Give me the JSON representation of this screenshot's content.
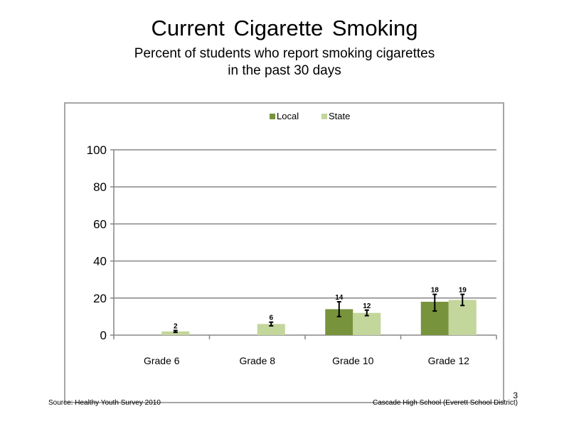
{
  "slide": {
    "title": "Current Cigarette Smoking",
    "subtitle_line1": "Percent of students who report smoking cigarettes",
    "subtitle_line2": "in the past 30 days",
    "source": "Source: Healthy Youth Survey 2010",
    "school": "Cascade High School (Everett School District)",
    "page_number": "3"
  },
  "chart_data": {
    "type": "bar",
    "categories": [
      "Grade 6",
      "Grade 8",
      "Grade 10",
      "Grade 12"
    ],
    "series": [
      {
        "name": "Local",
        "color": "#77933c",
        "values": [
          null,
          null,
          14,
          18
        ],
        "labels": [
          "",
          "",
          "14",
          "18"
        ],
        "error_low": [
          null,
          null,
          10,
          13
        ],
        "error_high": [
          null,
          null,
          18,
          22
        ]
      },
      {
        "name": "State",
        "color": "#c3d69b",
        "values": [
          2,
          6,
          12,
          19
        ],
        "labels": [
          "2",
          "6",
          "12",
          "19"
        ],
        "error_low": [
          1.5,
          5,
          10.5,
          16
        ],
        "error_high": [
          2.5,
          7,
          13.5,
          22
        ]
      }
    ],
    "ylim": [
      0,
      100
    ],
    "yticks": [
      0,
      20,
      40,
      60,
      80,
      100
    ],
    "grid": true,
    "legend": "top-center",
    "error_bar_color": "#000000",
    "grid_color": "#868686"
  }
}
